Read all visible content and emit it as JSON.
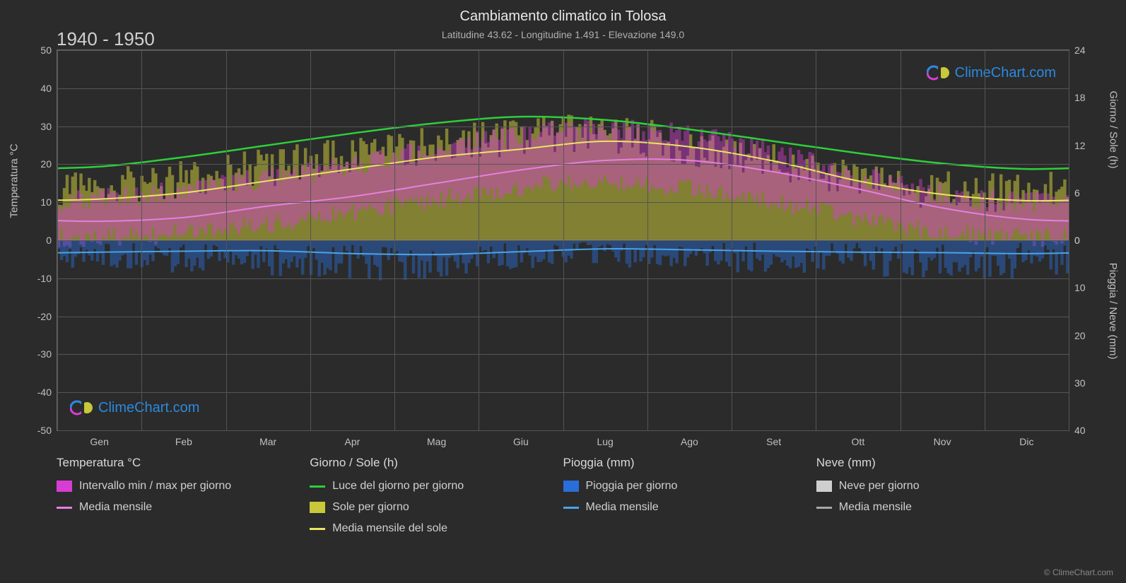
{
  "title": "Cambiamento climatico in Tolosa",
  "subtitle": "Latitudine 43.62 - Longitudine 1.491 - Elevazione 149.0",
  "period": "1940 - 1950",
  "brand": "ClimeChart.com",
  "copyright": "© ClimeChart.com",
  "colors": {
    "background": "#2b2b2b",
    "grid": "#555555",
    "text": "#d0d0d0",
    "temp_range_fill": "#d83dd3",
    "temp_mean_line": "#e67fe0",
    "daylight_line": "#2dcf3a",
    "sun_fill": "#c9c73a",
    "sun_mean_line": "#e8e662",
    "rain_fill": "#2a6ed9",
    "rain_mean_line": "#4aa3e8",
    "snow_fill": "#cfcfcf",
    "snow_mean_line": "#a8a8a8",
    "brand_blue": "#2a8ae0"
  },
  "axes": {
    "y_left": {
      "label": "Temperatura °C",
      "min": -50,
      "max": 50,
      "step": 10
    },
    "y_right_top": {
      "label": "Giorno / Sole (h)",
      "ticks": [
        0,
        6,
        12,
        18,
        24
      ]
    },
    "y_right_bottom": {
      "label": "Pioggia / Neve (mm)",
      "ticks": [
        0,
        10,
        20,
        30,
        40
      ]
    },
    "x_months": [
      "Gen",
      "Feb",
      "Mar",
      "Apr",
      "Mag",
      "Giu",
      "Lug",
      "Ago",
      "Set",
      "Ott",
      "Nov",
      "Dic"
    ]
  },
  "series": {
    "daylight_h": [
      9.3,
      10.5,
      12.0,
      13.5,
      14.8,
      15.6,
      15.2,
      14.0,
      12.5,
      11.0,
      9.7,
      9.0
    ],
    "sun_mean_h": [
      5.2,
      6.0,
      7.5,
      9.0,
      10.5,
      11.5,
      12.5,
      11.8,
      10.0,
      7.5,
      5.8,
      5.0
    ],
    "temp_mean_c": [
      5.0,
      6.0,
      9.0,
      11.5,
      15.0,
      18.5,
      21.0,
      21.0,
      18.0,
      13.5,
      8.5,
      5.5
    ],
    "temp_min_c": [
      0.5,
      1.0,
      3.0,
      5.5,
      9.0,
      12.5,
      15.0,
      15.0,
      12.0,
      8.0,
      3.5,
      1.0
    ],
    "temp_max_c": [
      10.0,
      11.5,
      15.0,
      18.0,
      22.0,
      26.0,
      29.0,
      29.0,
      25.5,
      20.0,
      14.0,
      10.5
    ],
    "rain_mean_mm": [
      2.5,
      2.3,
      2.2,
      2.8,
      3.0,
      2.4,
      1.8,
      2.0,
      2.3,
      2.5,
      2.6,
      2.8
    ]
  },
  "legend": {
    "col1": {
      "title": "Temperatura °C",
      "items": [
        {
          "kind": "fill",
          "color": "#d83dd3",
          "label": "Intervallo min / max per giorno"
        },
        {
          "kind": "line",
          "color": "#e67fe0",
          "label": "Media mensile"
        }
      ]
    },
    "col2": {
      "title": "Giorno / Sole (h)",
      "items": [
        {
          "kind": "line",
          "color": "#2dcf3a",
          "label": "Luce del giorno per giorno"
        },
        {
          "kind": "fill",
          "color": "#c9c73a",
          "label": "Sole per giorno"
        },
        {
          "kind": "line",
          "color": "#e8e662",
          "label": "Media mensile del sole"
        }
      ]
    },
    "col3": {
      "title": "Pioggia (mm)",
      "items": [
        {
          "kind": "fill",
          "color": "#2a6ed9",
          "label": "Pioggia per giorno"
        },
        {
          "kind": "line",
          "color": "#4aa3e8",
          "label": "Media mensile"
        }
      ]
    },
    "col4": {
      "title": "Neve (mm)",
      "items": [
        {
          "kind": "fill",
          "color": "#cfcfcf",
          "label": "Neve per giorno"
        },
        {
          "kind": "line",
          "color": "#a8a8a8",
          "label": "Media mensile"
        }
      ]
    }
  }
}
